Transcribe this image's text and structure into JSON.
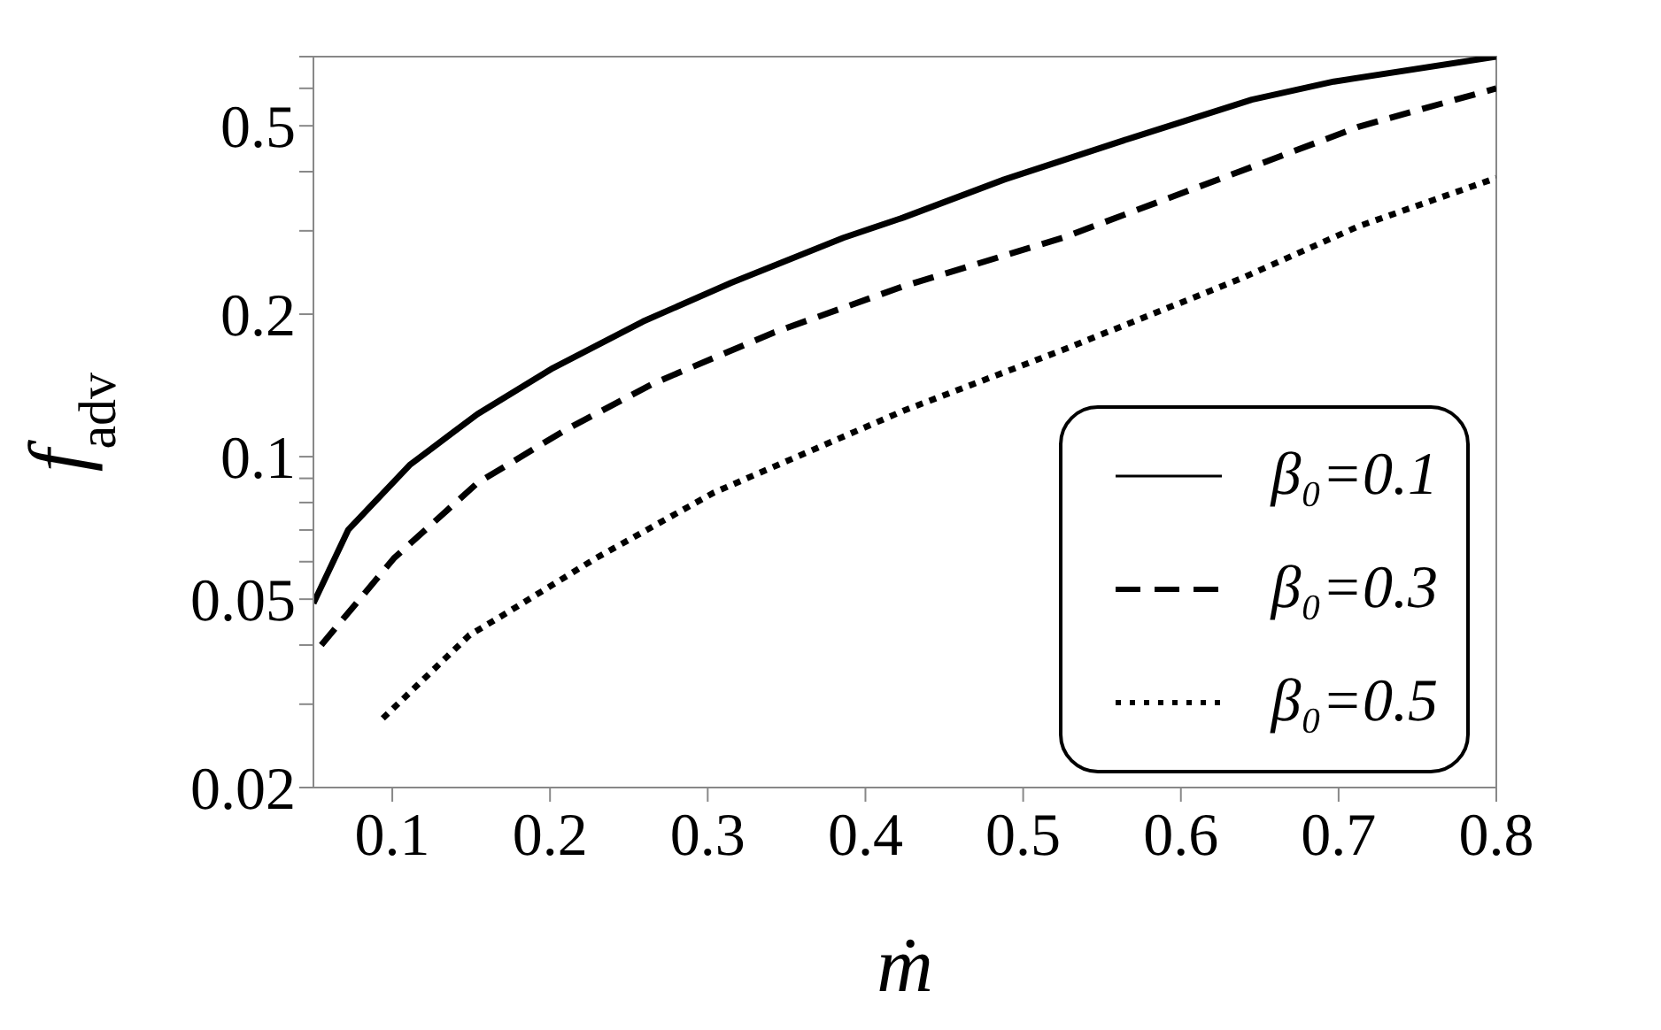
{
  "chart_data": {
    "type": "line",
    "xlabel": "ṁ",
    "ylabel": "f$_{adv}$",
    "log": "y",
    "legend": "bottom right",
    "marker": "none",
    "xlim": [
      0.05,
      0.8
    ],
    "xticks": [
      0.1,
      0.2,
      0.3,
      0.4,
      0.5,
      0.6,
      0.7,
      0.8
    ],
    "ylim": [
      0.02,
      0.7
    ],
    "yticks": [
      0.02,
      {
        "value": 0.03,
        "label": null
      },
      {
        "value": 0.04,
        "label": null
      },
      0.05,
      {
        "value": 0.06,
        "label": null
      },
      {
        "value": 0.07,
        "label": null
      },
      {
        "value": 0.08,
        "label": null
      },
      {
        "value": 0.09,
        "label": null
      },
      0.1,
      0.2,
      {
        "value": 0.3,
        "label": null
      },
      {
        "value": 0.4,
        "label": null
      },
      0.5,
      {
        "value": 0.6,
        "label": null
      },
      {
        "value": 0.7,
        "label": null
      }
    ],
    "series": [
      {
        "name": "β₀=0.1",
        "color": "#000000",
        "line_style": "solid",
        "x": [
          0.05,
          0.072,
          0.111,
          0.154,
          0.202,
          0.259,
          0.315,
          0.386,
          0.424,
          0.488,
          0.57,
          0.645,
          0.697,
          0.8
        ],
        "values": [
          0.049,
          0.07,
          0.096,
          0.123,
          0.154,
          0.193,
          0.233,
          0.29,
          0.32,
          0.385,
          0.473,
          0.568,
          0.62,
          0.7
        ]
      },
      {
        "name": "β₀=0.3",
        "color": "#000000",
        "line_style": "dashed",
        "x": [
          0.055,
          0.101,
          0.154,
          0.21,
          0.266,
          0.342,
          0.424,
          0.525,
          0.637,
          0.713,
          0.8
        ],
        "values": [
          0.04,
          0.061,
          0.088,
          0.114,
          0.143,
          0.183,
          0.229,
          0.29,
          0.4,
          0.498,
          0.6
        ]
      },
      {
        "name": "β₀=0.5",
        "color": "#000000",
        "line_style": "dotted",
        "x": [
          0.094,
          0.149,
          0.169,
          0.229,
          0.304,
          0.424,
          0.525,
          0.637,
          0.713,
          0.8
        ],
        "values": [
          0.028,
          0.042,
          0.046,
          0.061,
          0.084,
          0.125,
          0.168,
          0.237,
          0.307,
          0.388
        ]
      }
    ]
  }
}
